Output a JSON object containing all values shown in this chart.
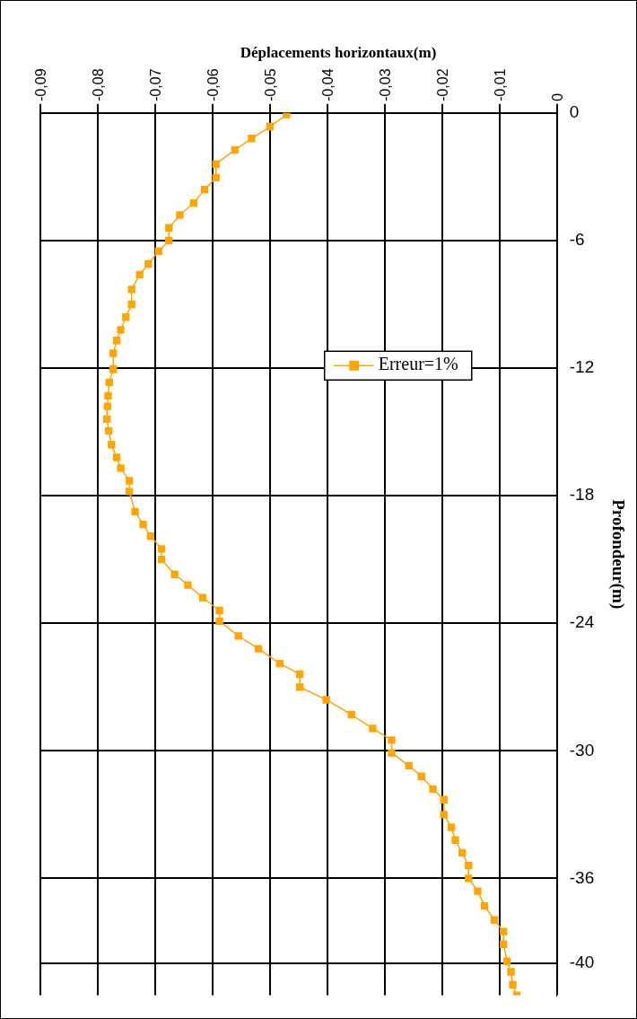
{
  "chart_data": {
    "type": "line",
    "title": "Déplacements horizontaux(m)",
    "ylabel": "Profondeur(m)",
    "series": [
      {
        "name": "Erreur=1%",
        "color": "#ffa500",
        "x": [
          -0.0471,
          -0.05,
          -0.0532,
          -0.0561,
          -0.0594,
          -0.0594,
          -0.0614,
          -0.0633,
          -0.0657,
          -0.0676,
          -0.0676,
          -0.0694,
          -0.0712,
          -0.0727,
          -0.0741,
          -0.0741,
          -0.0751,
          -0.076,
          -0.0767,
          -0.0773,
          -0.0773,
          -0.078,
          -0.0782,
          -0.0783,
          -0.0784,
          -0.0781,
          -0.0776,
          -0.0767,
          -0.076,
          -0.0745,
          -0.0745,
          -0.0735,
          -0.0721,
          -0.0708,
          -0.0689,
          -0.0689,
          -0.0666,
          -0.0643,
          -0.0617,
          -0.0588,
          -0.0588,
          -0.0555,
          -0.052,
          -0.0483,
          -0.0448,
          -0.0448,
          -0.0402,
          -0.0358,
          -0.0321,
          -0.0288,
          -0.0288,
          -0.0258,
          -0.0236,
          -0.0216,
          -0.0197,
          -0.0197,
          -0.0184,
          -0.0177,
          -0.0165,
          -0.0154,
          -0.0154,
          -0.0138,
          -0.0126,
          -0.0109,
          -0.0093,
          -0.0093,
          -0.0087,
          -0.008,
          -0.0077,
          -0.007
        ],
        "values": [
          -0.07,
          -0.64,
          -1.2,
          -1.73,
          -2.4,
          -3.04,
          -3.6,
          -4.24,
          -4.8,
          -5.4,
          -6.0,
          -6.5,
          -7.1,
          -7.6,
          -8.3,
          -9.0,
          -9.6,
          -10.2,
          -10.7,
          -11.3,
          -12.05,
          -12.67,
          -13.3,
          -13.8,
          -14.4,
          -14.95,
          -15.6,
          -16.2,
          -16.7,
          -17.3,
          -17.8,
          -18.75,
          -19.35,
          -19.9,
          -20.5,
          -21.0,
          -21.7,
          -22.2,
          -22.8,
          -23.4,
          -23.9,
          -24.6,
          -25.2,
          -25.9,
          -26.4,
          -27.0,
          -27.6,
          -28.3,
          -28.95,
          -29.5,
          -30.1,
          -30.7,
          -31.2,
          -31.8,
          -32.3,
          -33.0,
          -33.6,
          -34.2,
          -34.8,
          -35.4,
          -36.0,
          -36.6,
          -37.3,
          -37.96,
          -38.5,
          -39.1,
          -39.9,
          -40.4,
          -41.0,
          -41.5
        ]
      }
    ],
    "xlim": [
      -0.09,
      0
    ],
    "xticks": [
      {
        "value": -0.09,
        "label": "-0,09"
      },
      {
        "value": -0.08,
        "label": "-0,08"
      },
      {
        "value": -0.07,
        "label": "-0,07"
      },
      {
        "value": -0.06,
        "label": "-0,06"
      },
      {
        "value": -0.05,
        "label": "-0,05"
      },
      {
        "value": -0.04,
        "label": "-0,04"
      },
      {
        "value": -0.03,
        "label": "-0,03"
      },
      {
        "value": -0.02,
        "label": "-0,02"
      },
      {
        "value": -0.01,
        "label": "-0,01"
      },
      0
    ],
    "ylim": [
      -41.5,
      0
    ],
    "yticks": [
      0,
      -6,
      -12,
      -18,
      -24,
      -30,
      -36,
      -40
    ],
    "grid": true,
    "legend": "right",
    "marker": "square"
  }
}
